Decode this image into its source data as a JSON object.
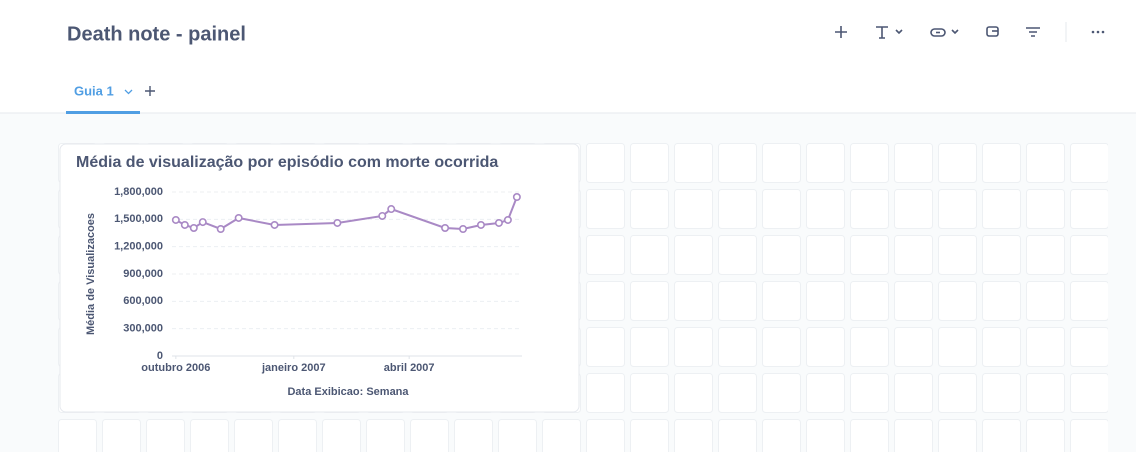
{
  "header": {
    "title": "Death note - painel"
  },
  "tabs": [
    {
      "label": "Guia 1"
    }
  ],
  "chart_data": {
    "type": "line",
    "title": "Média de visualização por episódio com morte ocorrida",
    "x_label": "Data Exibicao: Semana",
    "y_label": "Média de Visualizacoes",
    "x": [
      "2006-10-01",
      "2006-10-08",
      "2006-10-15",
      "2006-10-22",
      "2006-11-05",
      "2006-11-19",
      "2006-12-17",
      "2007-02-04",
      "2007-03-11",
      "2007-03-18",
      "2007-04-29",
      "2007-05-13",
      "2007-05-27",
      "2007-06-10",
      "2007-06-17",
      "2007-06-24"
    ],
    "series": [
      {
        "name": "Média de Visualizacoes",
        "color": "#a989c5",
        "values": [
          1493000,
          1438000,
          1405000,
          1470000,
          1394000,
          1515000,
          1438000,
          1460000,
          1537000,
          1613000,
          1405000,
          1394000,
          1438000,
          1460000,
          1493000,
          1745000
        ]
      }
    ],
    "xlim": [
      "2006-09-28",
      "2007-06-28"
    ],
    "xticks": [
      {
        "value": "2006-10-01",
        "label": "outubro 2006"
      },
      {
        "value": "2007-01-01",
        "label": "janeiro 2007"
      },
      {
        "value": "2007-04-01",
        "label": "abril 2007"
      }
    ],
    "ylim": [
      0,
      1800000
    ],
    "yticks": [
      0,
      {
        "value": 300000,
        "label": "300,000"
      },
      {
        "value": 600000,
        "label": "600,000"
      },
      {
        "value": 900000,
        "label": "900,000"
      },
      {
        "value": 1200000,
        "label": "1,200,000"
      },
      {
        "value": 1500000,
        "label": "1,500,000"
      },
      {
        "value": 1800000,
        "label": "1,800,000"
      }
    ],
    "grid": true
  }
}
